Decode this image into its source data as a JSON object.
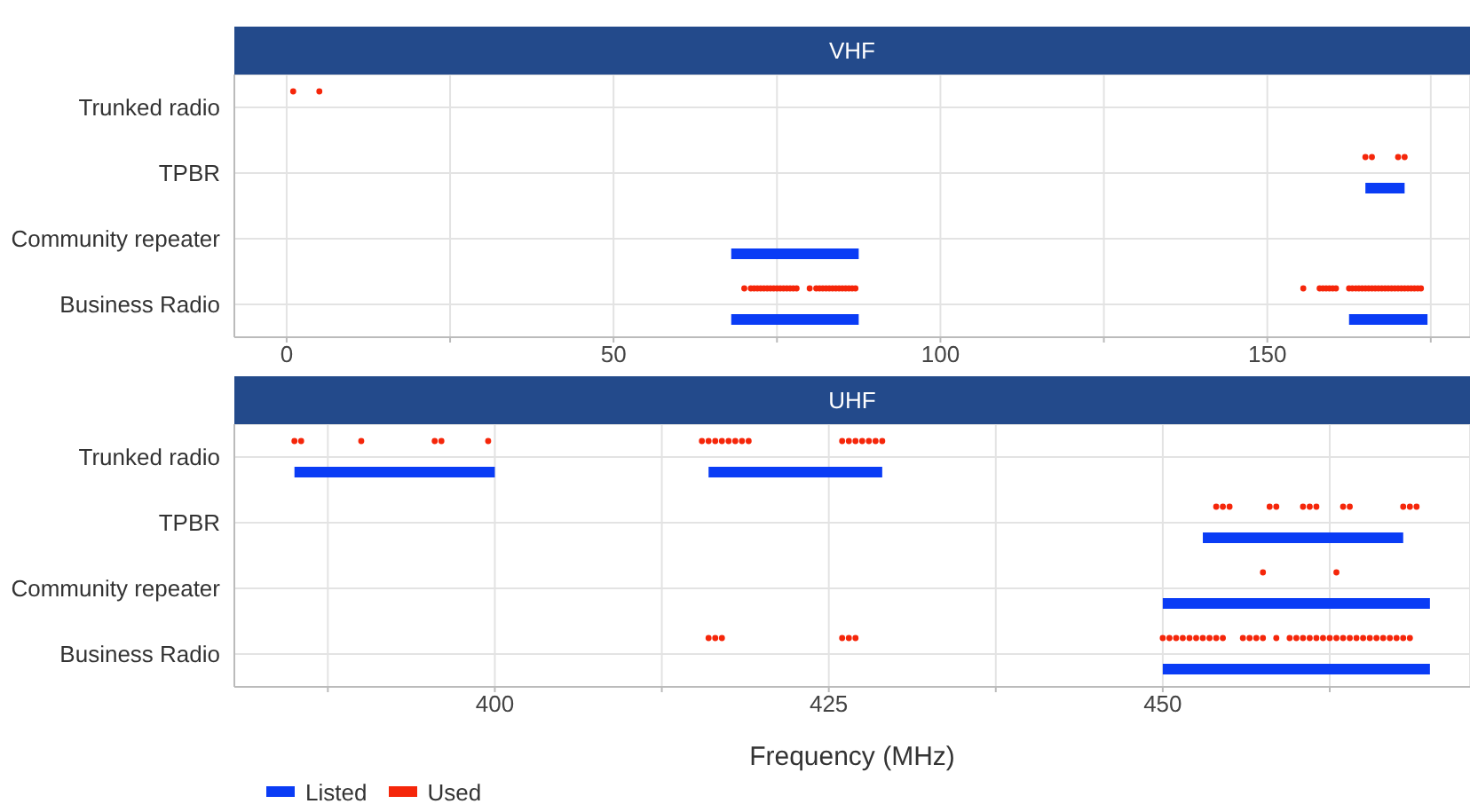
{
  "chart_data": [
    {
      "type": "bar",
      "orientation": "horizontal",
      "title": "VHF",
      "categories": [
        "Trunked radio",
        "TPBR",
        "Community repeater",
        "Business Radio"
      ],
      "series": [
        {
          "color": "#0a3cf5",
          "base": [
            null,
            165,
            68,
            68
          ],
          "values": [
            null,
            6,
            19.5,
            19.5
          ]
        },
        {
          "color": "#0a3cf5",
          "base": [
            null,
            null,
            null,
            162.5
          ],
          "values": [
            null,
            null,
            null,
            12
          ]
        },
        {
          "type": "scatter",
          "color": "#f5260a",
          "x": [
            "Trunked radio",
            "Trunked radio",
            "TPBR",
            "TPBR",
            "TPBR",
            "TPBR",
            "Business Radio",
            "Business Radio",
            "Business Radio",
            "Business Radio",
            "Business Radio",
            "Business Radio",
            "Business Radio",
            "Business Radio",
            "Business Radio",
            "Business Radio",
            "Business Radio",
            "Business Radio",
            "Business Radio",
            "Business Radio",
            "Business Radio",
            "Business Radio",
            "Business Radio",
            "Business Radio",
            "Business Radio",
            "Business Radio",
            "Business Radio",
            "Business Radio",
            "Business Radio",
            "Business Radio",
            "Business Radio",
            "Business Radio",
            "Business Radio",
            "Business Radio",
            "Business Radio",
            "Business Radio",
            "Business Radio",
            "Business Radio",
            "Business Radio",
            "Business Radio",
            "Business Radio",
            "Business Radio",
            "Business Radio",
            "Business Radio",
            "Business Radio",
            "Business Radio",
            "Business Radio",
            "Business Radio",
            "Business Radio",
            "Business Radio",
            "Business Radio",
            "Business Radio",
            "Business Radio",
            "Business Radio",
            "Business Radio",
            "Business Radio",
            "Business Radio",
            "Business Radio",
            "Business Radio",
            "Business Radio",
            "Business Radio",
            "Business Radio",
            "Business Radio",
            "Business Radio",
            "Business Radio",
            "Business Radio"
          ],
          "values": [
            1,
            5,
            165,
            166,
            170,
            171,
            70,
            71,
            71.5,
            72,
            72.5,
            73,
            73.5,
            74,
            74.5,
            75,
            75.5,
            76,
            76.5,
            77,
            77.5,
            78,
            80,
            81,
            81.5,
            82,
            82.5,
            83,
            83.5,
            84,
            84.5,
            85,
            85.5,
            86,
            86.5,
            87,
            155.5,
            158,
            158.5,
            159,
            159.5,
            160,
            160.5,
            162.5,
            163,
            163.5,
            164,
            164.5,
            165,
            165.5,
            166,
            166.5,
            167,
            167.5,
            168,
            168.5,
            169,
            169.5,
            170,
            170.5,
            171,
            171.5,
            172,
            172.5,
            173,
            173.5
          ]
        }
      ],
      "xlim": [
        -8,
        181
      ],
      "xticks": [
        0,
        {
          "value": 25,
          "label": null
        },
        50,
        {
          "value": 75,
          "label": null
        },
        100,
        {
          "value": 125,
          "label": null
        },
        150,
        {
          "value": 175,
          "label": null
        }
      ],
      "grid": true,
      "legend": false
    },
    {
      "type": "bar",
      "orientation": "horizontal",
      "title": "UHF",
      "xlabel": "Frequency (MHz)",
      "categories": [
        "Trunked radio",
        "TPBR",
        "Community repeater",
        "Business Radio"
      ],
      "series": [
        {
          "name": "Listed",
          "color": "#0a3cf5",
          "base": [
            385,
            453,
            450,
            450
          ],
          "values": [
            15,
            15,
            20,
            20
          ]
        },
        {
          "color": "#0a3cf5",
          "base": [
            416,
            null,
            null,
            null
          ],
          "values": [
            13,
            null,
            null,
            null
          ]
        },
        {
          "type": "scatter",
          "name": "Used",
          "color": "#f5260a",
          "x": [
            "Trunked radio",
            "Trunked radio",
            "Trunked radio",
            "Trunked radio",
            "Trunked radio",
            "Trunked radio",
            "Trunked radio",
            "Trunked radio",
            "Trunked radio",
            "Trunked radio",
            "Trunked radio",
            "Trunked radio",
            "Trunked radio",
            "Trunked radio",
            "Trunked radio",
            "Trunked radio",
            "Trunked radio",
            "Trunked radio",
            "Trunked radio",
            "Trunked radio",
            "Trunked radio",
            "TPBR",
            "TPBR",
            "TPBR",
            "TPBR",
            "TPBR",
            "TPBR",
            "TPBR",
            "TPBR",
            "TPBR",
            "TPBR",
            "TPBR",
            "TPBR",
            "TPBR",
            "Community repeater",
            "Community repeater",
            "Business Radio",
            "Business Radio",
            "Business Radio",
            "Business Radio",
            "Business Radio",
            "Business Radio",
            "Business Radio",
            "Business Radio",
            "Business Radio",
            "Business Radio",
            "Business Radio",
            "Business Radio",
            "Business Radio",
            "Business Radio",
            "Business Radio",
            "Business Radio",
            "Business Radio",
            "Business Radio",
            "Business Radio",
            "Business Radio",
            "Business Radio",
            "Business Radio",
            "Business Radio",
            "Business Radio",
            "Business Radio",
            "Business Radio",
            "Business Radio",
            "Business Radio",
            "Business Radio",
            "Business Radio",
            "Business Radio",
            "Business Radio",
            "Business Radio",
            "Business Radio",
            "Business Radio",
            "Business Radio",
            "Business Radio",
            "Business Radio",
            "Business Radio",
            "Business Radio"
          ],
          "values": [
            385,
            385.5,
            390,
            395.5,
            396,
            399.5,
            415.5,
            416,
            416.5,
            417,
            417.5,
            418,
            418.5,
            419,
            426,
            426.5,
            427,
            427.5,
            428,
            428.5,
            429,
            454,
            454.5,
            455,
            458,
            458.5,
            460.5,
            461,
            461.5,
            463.5,
            464,
            468,
            468.5,
            469,
            457.5,
            463,
            416,
            416.5,
            417,
            426,
            426.5,
            427,
            450,
            450.5,
            451,
            451.5,
            452,
            452.5,
            453,
            453.5,
            454,
            454.5,
            456,
            456.5,
            457,
            457.5,
            458.5,
            459.5,
            460,
            460.5,
            461,
            461.5,
            462,
            462.5,
            463,
            463.5,
            464,
            464.5,
            465,
            465.5,
            466,
            466.5,
            467,
            467.5,
            468,
            468.5
          ]
        }
      ],
      "xlim": [
        380.5,
        473
      ],
      "xticks": [
        {
          "value": 387.5,
          "label": null
        },
        400,
        {
          "value": 412.5,
          "label": null
        },
        425,
        {
          "value": 437.5,
          "label": null
        },
        450,
        {
          "value": 462.5,
          "label": null
        }
      ],
      "grid": true,
      "legend": "bottom"
    }
  ]
}
